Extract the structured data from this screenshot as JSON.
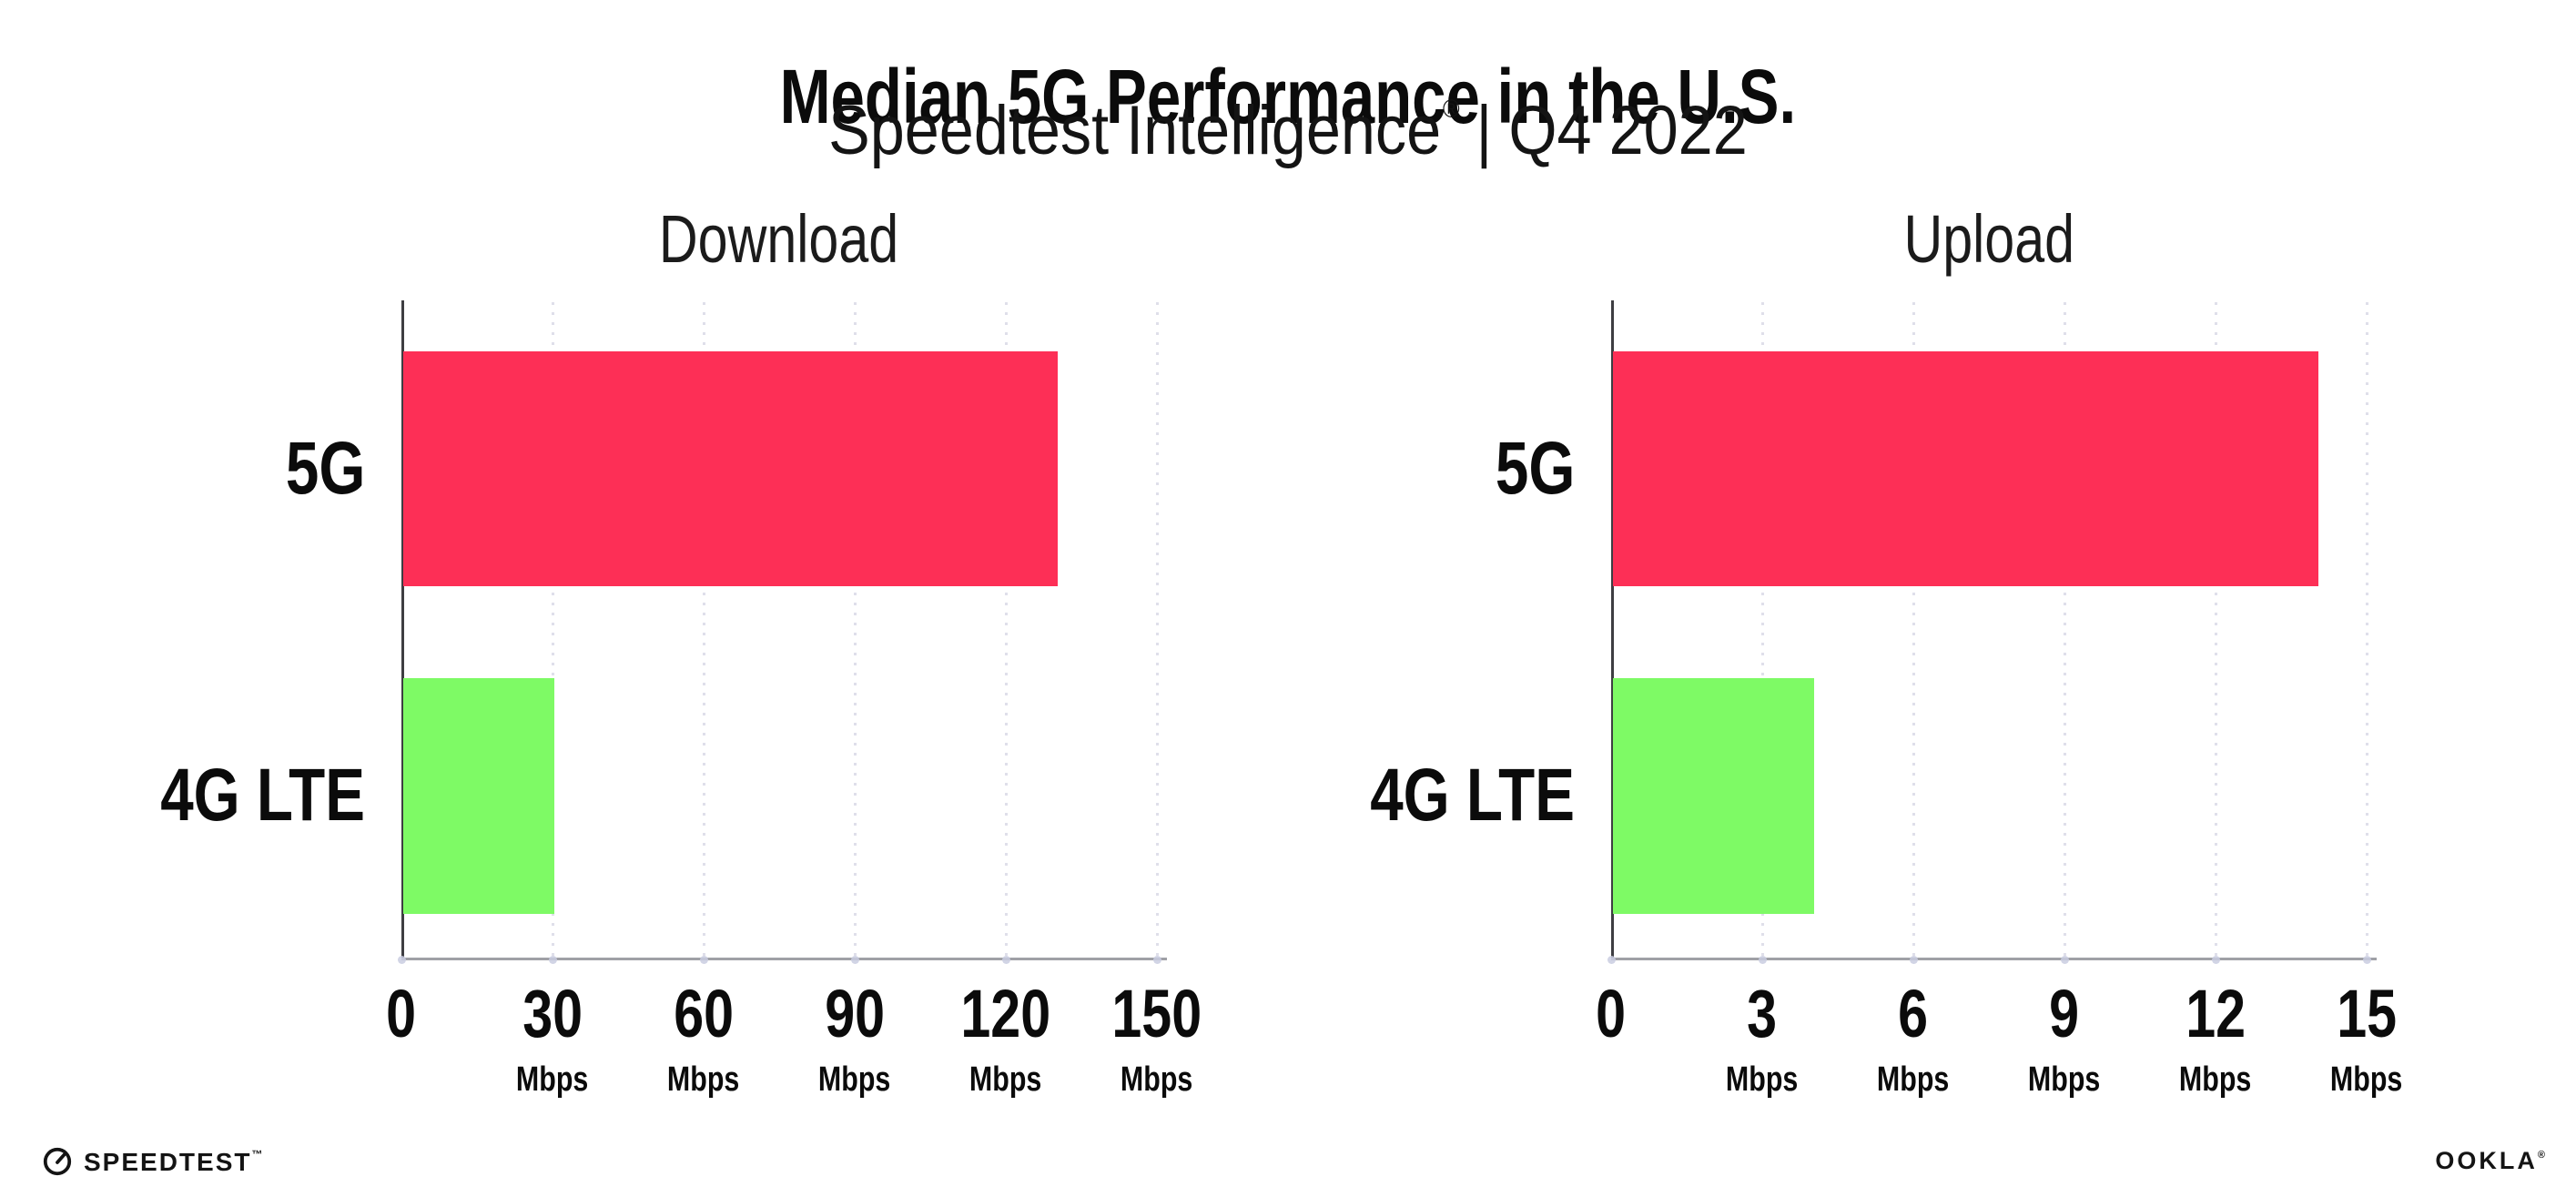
{
  "header": {
    "title": "Median 5G Performance in the U.S.",
    "subtitle_product": "Speedtest Intelligence",
    "subtitle_reg": "®",
    "subtitle_sep": "|",
    "subtitle_period": "Q4 2022"
  },
  "chart_data": [
    {
      "type": "bar",
      "orientation": "horizontal",
      "title": "Download",
      "categories": [
        "5G",
        "4G LTE"
      ],
      "values": [
        130,
        30
      ],
      "unit": "Mbps",
      "xlim": [
        0,
        150
      ],
      "xticks": [
        0,
        30,
        60,
        90,
        120,
        150
      ],
      "tick_unit": "Mbps",
      "bar_colors": [
        "#FD2F56",
        "#7EFA65"
      ],
      "grid": "dotted-vertical",
      "legend": "none"
    },
    {
      "type": "bar",
      "orientation": "horizontal",
      "title": "Upload",
      "categories": [
        "5G",
        "4G LTE"
      ],
      "values": [
        14,
        4
      ],
      "unit": "Mbps",
      "xlim": [
        0,
        15
      ],
      "xticks": [
        0,
        3,
        6,
        9,
        12,
        15
      ],
      "tick_unit": "Mbps",
      "bar_colors": [
        "#FD2F56",
        "#7EFA65"
      ],
      "grid": "dotted-vertical",
      "legend": "none"
    }
  ],
  "footer": {
    "speedtest_label": "SPEEDTEST",
    "speedtest_tm": "™",
    "ookla_label": "OOKLA",
    "ookla_reg": "®"
  },
  "colors": {
    "bar_5g": "#FD2F56",
    "bar_4g_lte": "#7EFA65",
    "text": "#0B0B0B",
    "axis_left": "#3E3E42",
    "axis_bottom": "#9FA0A6",
    "gridline": "#DFDFEA",
    "background": "#FFFFFF"
  }
}
